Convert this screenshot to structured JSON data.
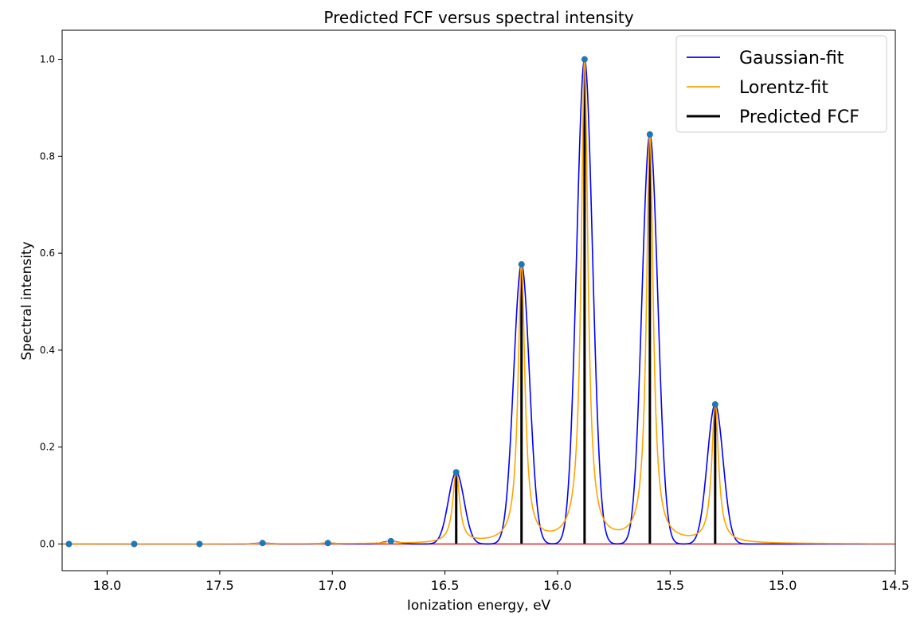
{
  "chart_data": {
    "type": "line",
    "title": "Predicted FCF versus spectral intensity",
    "xlabel": "Ionization energy, eV",
    "ylabel": "Spectral intensity",
    "xlim": [
      18.2,
      14.5
    ],
    "ylim": [
      -0.055,
      1.06
    ],
    "x_inverted": true,
    "grid": false,
    "legend_position": "top-right",
    "xticks": [
      18.0,
      17.5,
      17.0,
      16.5,
      16.0,
      15.5,
      15.0,
      14.5
    ],
    "xtick_labels": [
      "18.0",
      "17.5",
      "17.0",
      "16.5",
      "16.0",
      "15.5",
      "15.0",
      "14.5"
    ],
    "yticks": [
      0.0,
      0.2,
      0.4,
      0.6,
      0.8,
      1.0
    ],
    "ytick_labels": [
      "0.0",
      "0.2",
      "0.4",
      "0.6",
      "0.8",
      "1.0"
    ],
    "peaks": {
      "x": [
        18.17,
        17.88,
        17.59,
        17.31,
        17.02,
        16.74,
        16.45,
        16.16,
        15.88,
        15.59,
        15.3
      ],
      "y": [
        0.0,
        0.0,
        0.0,
        0.002,
        0.002,
        0.006,
        0.148,
        0.577,
        1.0,
        0.845,
        0.288
      ]
    },
    "gaussian_sigma": 0.035,
    "lorentz_gamma": 0.018,
    "series": [
      {
        "name": "Gaussian-fit",
        "color": "#0000ff",
        "kind": "line"
      },
      {
        "name": "Lorentz-fit",
        "color": "#ffa500",
        "kind": "line"
      },
      {
        "name": "Predicted FCF",
        "color": "#000000",
        "kind": "stem"
      }
    ],
    "marker_color": "#1f77b4",
    "baseline_color": "#d62728"
  }
}
